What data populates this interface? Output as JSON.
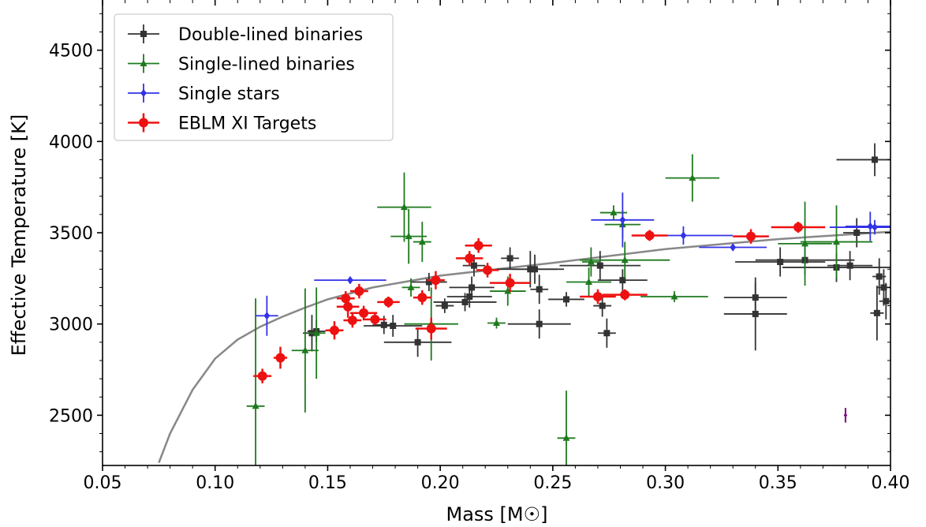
{
  "chart_data": {
    "type": "scatter",
    "xlabel": "Mass [M☉]",
    "ylabel": "Effective Temperature [K]",
    "xlim": [
      0.05,
      0.4
    ],
    "ylim": [
      2225,
      4775
    ],
    "xticks": [
      "0.05",
      "0.10",
      "0.15",
      "0.20",
      "0.25",
      "0.30",
      "0.35",
      "0.40"
    ],
    "yticks": [
      "2500",
      "3000",
      "3500",
      "4000",
      "4500"
    ],
    "legend_position": "upper-left",
    "grid": false,
    "series": [
      {
        "name": "Double-lined binaries",
        "color": "#333333",
        "marker": "square",
        "points": [
          {
            "x": 0.143,
            "y": 2950,
            "xerr": 0.004,
            "yerr": 100
          },
          {
            "x": 0.145,
            "y": 2960,
            "xerr": 0.004,
            "yerr": 60
          },
          {
            "x": 0.175,
            "y": 2995,
            "xerr": 0.005,
            "yerr": 50
          },
          {
            "x": 0.179,
            "y": 2990,
            "xerr": 0.013,
            "yerr": 60
          },
          {
            "x": 0.19,
            "y": 2900,
            "xerr": 0.015,
            "yerr": 80
          },
          {
            "x": 0.195,
            "y": 3230,
            "xerr": 0.008,
            "yerr": 50
          },
          {
            "x": 0.202,
            "y": 3100,
            "xerr": 0.004,
            "yerr": 40
          },
          {
            "x": 0.211,
            "y": 3120,
            "xerr": 0.014,
            "yerr": 50
          },
          {
            "x": 0.213,
            "y": 3150,
            "xerr": 0.01,
            "yerr": 60
          },
          {
            "x": 0.214,
            "y": 3200,
            "xerr": 0.01,
            "yerr": 60
          },
          {
            "x": 0.215,
            "y": 3320,
            "xerr": 0.005,
            "yerr": 60
          },
          {
            "x": 0.231,
            "y": 3360,
            "xerr": 0.004,
            "yerr": 60
          },
          {
            "x": 0.24,
            "y": 3300,
            "xerr": 0.015,
            "yerr": 100
          },
          {
            "x": 0.242,
            "y": 3300,
            "xerr": 0.01,
            "yerr": 80
          },
          {
            "x": 0.244,
            "y": 3190,
            "xerr": 0.004,
            "yerr": 80
          },
          {
            "x": 0.244,
            "y": 3000,
            "xerr": 0.014,
            "yerr": 80
          },
          {
            "x": 0.256,
            "y": 3135,
            "xerr": 0.008,
            "yerr": 40
          },
          {
            "x": 0.271,
            "y": 3320,
            "xerr": 0.018,
            "yerr": 80
          },
          {
            "x": 0.272,
            "y": 3100,
            "xerr": 0.004,
            "yerr": 60
          },
          {
            "x": 0.274,
            "y": 2950,
            "xerr": 0.004,
            "yerr": 80
          },
          {
            "x": 0.281,
            "y": 3240,
            "xerr": 0.011,
            "yerr": 60
          },
          {
            "x": 0.34,
            "y": 3145,
            "xerr": 0.014,
            "yerr": 80
          },
          {
            "x": 0.34,
            "y": 3055,
            "xerr": 0.014,
            "yerr": 200
          },
          {
            "x": 0.351,
            "y": 3340,
            "xerr": 0.02,
            "yerr": 80
          },
          {
            "x": 0.362,
            "y": 3350,
            "xerr": 0.022,
            "yerr": 80
          },
          {
            "x": 0.376,
            "y": 3310,
            "xerr": 0.024,
            "yerr": 80
          },
          {
            "x": 0.382,
            "y": 3320,
            "xerr": 0.01,
            "yerr": 80
          },
          {
            "x": 0.385,
            "y": 3500,
            "xerr": 0.006,
            "yerr": 80
          },
          {
            "x": 0.393,
            "y": 3900,
            "xerr": 0.017,
            "yerr": 90
          },
          {
            "x": 0.394,
            "y": 3060,
            "xerr": 0.003,
            "yerr": 150
          },
          {
            "x": 0.395,
            "y": 3260,
            "xerr": 0.003,
            "yerr": 100
          },
          {
            "x": 0.397,
            "y": 3200,
            "xerr": 0.003,
            "yerr": 100
          },
          {
            "x": 0.398,
            "y": 3125,
            "xerr": 0.003,
            "yerr": 100
          }
        ]
      },
      {
        "name": "Single-lined binaries",
        "color": "#1e7a1e",
        "marker": "triangle",
        "points": [
          {
            "x": 0.118,
            "y": 2550,
            "xerr": 0.004,
            "yerr": 590
          },
          {
            "x": 0.14,
            "y": 2855,
            "xerr": 0.006,
            "yerr": 340
          },
          {
            "x": 0.145,
            "y": 2950,
            "xerr": 0.004,
            "yerr": 250
          },
          {
            "x": 0.184,
            "y": 3640,
            "xerr": 0.012,
            "yerr": 190
          },
          {
            "x": 0.186,
            "y": 3480,
            "xerr": 0.008,
            "yerr": 150
          },
          {
            "x": 0.187,
            "y": 3200,
            "xerr": 0.004,
            "yerr": 50
          },
          {
            "x": 0.192,
            "y": 3450,
            "xerr": 0.004,
            "yerr": 110
          },
          {
            "x": 0.196,
            "y": 3000,
            "xerr": 0.012,
            "yerr": 200
          },
          {
            "x": 0.225,
            "y": 3005,
            "xerr": 0.004,
            "yerr": 30
          },
          {
            "x": 0.23,
            "y": 3180,
            "xerr": 0.008,
            "yerr": 80
          },
          {
            "x": 0.256,
            "y": 2375,
            "xerr": 0.004,
            "yerr": 260
          },
          {
            "x": 0.266,
            "y": 3230,
            "xerr": 0.01,
            "yerr": 80
          },
          {
            "x": 0.267,
            "y": 3340,
            "xerr": 0.004,
            "yerr": 80
          },
          {
            "x": 0.277,
            "y": 3610,
            "xerr": 0.006,
            "yerr": 40
          },
          {
            "x": 0.281,
            "y": 3545,
            "xerr": 0.008,
            "yerr": 80
          },
          {
            "x": 0.282,
            "y": 3350,
            "xerr": 0.02,
            "yerr": 100
          },
          {
            "x": 0.304,
            "y": 3150,
            "xerr": 0.015,
            "yerr": 30
          },
          {
            "x": 0.312,
            "y": 3800,
            "xerr": 0.012,
            "yerr": 130
          },
          {
            "x": 0.362,
            "y": 3440,
            "xerr": 0.012,
            "yerr": 230
          },
          {
            "x": 0.376,
            "y": 3450,
            "xerr": 0.016,
            "yerr": 200
          }
        ]
      },
      {
        "name": "Single stars",
        "color": "#3232e6",
        "marker": "diamond",
        "points": [
          {
            "x": 0.123,
            "y": 3045,
            "xerr": 0.005,
            "yerr": 110
          },
          {
            "x": 0.16,
            "y": 3240,
            "xerr": 0.016,
            "yerr": 20
          },
          {
            "x": 0.281,
            "y": 3570,
            "xerr": 0.014,
            "yerr": 150
          },
          {
            "x": 0.308,
            "y": 3485,
            "xerr": 0.022,
            "yerr": 50
          },
          {
            "x": 0.33,
            "y": 3420,
            "xerr": 0.015,
            "yerr": 20
          },
          {
            "x": 0.391,
            "y": 3535,
            "xerr": 0.011,
            "yerr": 80
          },
          {
            "x": 0.393,
            "y": 3530,
            "xerr": 0.02,
            "yerr": 40
          }
        ]
      },
      {
        "name": "EBLM XI Targets",
        "color": "#ee1111",
        "marker": "circle",
        "points": [
          {
            "x": 0.121,
            "y": 2715,
            "xerr": 0.004,
            "yerr": 40
          },
          {
            "x": 0.129,
            "y": 2815,
            "xerr": 0.003,
            "yerr": 60
          },
          {
            "x": 0.153,
            "y": 2965,
            "xerr": 0.004,
            "yerr": 50
          },
          {
            "x": 0.158,
            "y": 3140,
            "xerr": 0.004,
            "yerr": 40
          },
          {
            "x": 0.159,
            "y": 3095,
            "xerr": 0.005,
            "yerr": 60
          },
          {
            "x": 0.161,
            "y": 3020,
            "xerr": 0.004,
            "yerr": 40
          },
          {
            "x": 0.164,
            "y": 3180,
            "xerr": 0.004,
            "yerr": 40
          },
          {
            "x": 0.166,
            "y": 3060,
            "xerr": 0.006,
            "yerr": 40
          },
          {
            "x": 0.171,
            "y": 3025,
            "xerr": 0.005,
            "yerr": 30
          },
          {
            "x": 0.177,
            "y": 3120,
            "xerr": 0.005,
            "yerr": 30
          },
          {
            "x": 0.192,
            "y": 3145,
            "xerr": 0.004,
            "yerr": 40
          },
          {
            "x": 0.196,
            "y": 2975,
            "xerr": 0.007,
            "yerr": 60
          },
          {
            "x": 0.198,
            "y": 3240,
            "xerr": 0.004,
            "yerr": 50
          },
          {
            "x": 0.213,
            "y": 3360,
            "xerr": 0.006,
            "yerr": 40
          },
          {
            "x": 0.217,
            "y": 3430,
            "xerr": 0.006,
            "yerr": 40
          },
          {
            "x": 0.221,
            "y": 3295,
            "xerr": 0.005,
            "yerr": 40
          },
          {
            "x": 0.231,
            "y": 3225,
            "xerr": 0.009,
            "yerr": 50
          },
          {
            "x": 0.27,
            "y": 3150,
            "xerr": 0.008,
            "yerr": 40
          },
          {
            "x": 0.282,
            "y": 3160,
            "xerr": 0.01,
            "yerr": 30
          },
          {
            "x": 0.293,
            "y": 3485,
            "xerr": 0.008,
            "yerr": 30
          },
          {
            "x": 0.338,
            "y": 3480,
            "xerr": 0.008,
            "yerr": 40
          },
          {
            "x": 0.359,
            "y": 3530,
            "xerr": 0.012,
            "yerr": 30
          }
        ]
      }
    ],
    "model_curve": {
      "color": "#888888",
      "points": [
        [
          0.075,
          2240
        ],
        [
          0.08,
          2400
        ],
        [
          0.09,
          2640
        ],
        [
          0.1,
          2810
        ],
        [
          0.11,
          2915
        ],
        [
          0.12,
          2985
        ],
        [
          0.13,
          3040
        ],
        [
          0.14,
          3090
        ],
        [
          0.15,
          3135
        ],
        [
          0.17,
          3200
        ],
        [
          0.2,
          3265
        ],
        [
          0.25,
          3335
        ],
        [
          0.3,
          3410
        ],
        [
          0.35,
          3465
        ],
        [
          0.4,
          3505
        ]
      ]
    },
    "typical_error_marker": {
      "x": 0.38,
      "y": 2500,
      "yerr": 40,
      "color": "#800080"
    }
  }
}
